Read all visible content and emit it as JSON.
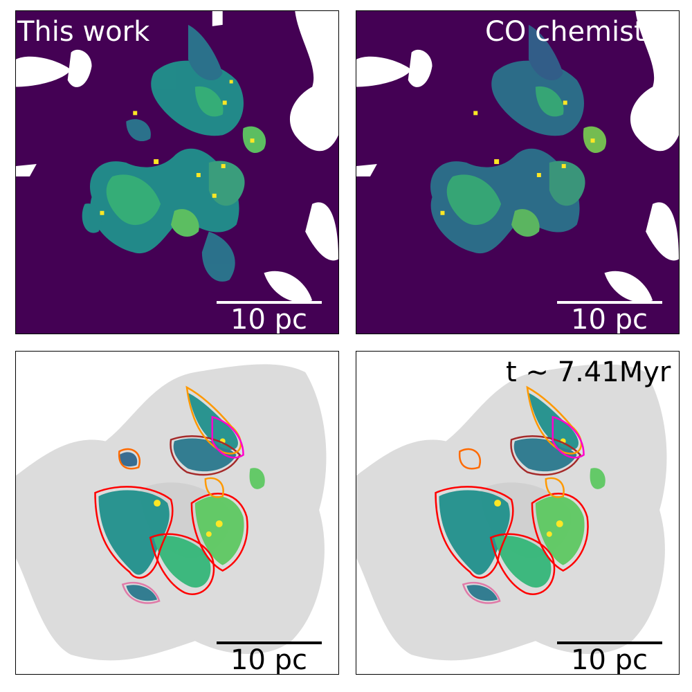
{
  "panels": {
    "top_left": {
      "label": "This work",
      "scale_label": "10 pc"
    },
    "top_right": {
      "label": "CO chemistry",
      "scale_label": "10 pc"
    },
    "bottom_left": {
      "scale_label": "10 pc"
    },
    "bottom_right": {
      "time_label": "t ~ 7.41Myr",
      "scale_label": "10 pc"
    }
  },
  "colors": {
    "background_purple": "#440154",
    "cloud_teal": "#2a788e",
    "cloud_green": "#22a884",
    "cloud_lime": "#7ad151",
    "cloud_yellow": "#fde725",
    "gas_grey": "#dcdcdc",
    "contour_red": "#ff0000",
    "contour_orange": "#ff9900",
    "contour_magenta": "#ff00cc",
    "contour_brown": "#a52a2a",
    "contour_pink": "#e07aa8"
  }
}
